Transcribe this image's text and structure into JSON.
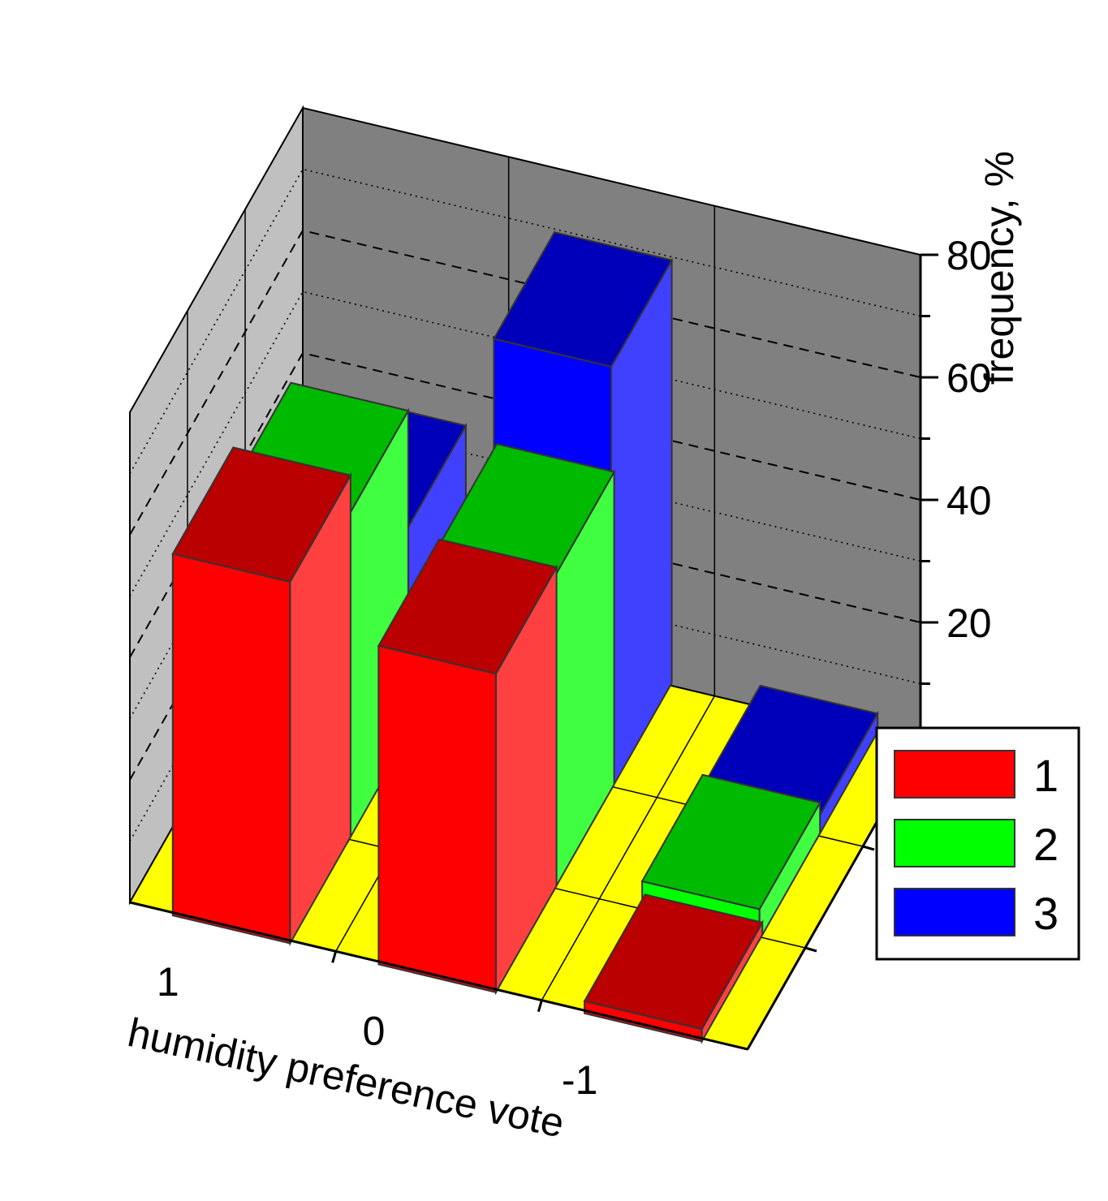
{
  "chart_data": {
    "type": "bar",
    "subtype": "3d-grouped",
    "categories": [
      "1",
      "0",
      "-1"
    ],
    "series": [
      {
        "name": "1",
        "values": [
          59,
          52,
          2
        ]
      },
      {
        "name": "2",
        "values": [
          53,
          51,
          5
        ]
      },
      {
        "name": "3",
        "values": [
          34,
          69,
          3
        ]
      }
    ],
    "xlabel": "humidity preference vote",
    "zlabel": "frequency, %",
    "zlim": [
      0,
      80
    ],
    "zticks": [
      "0",
      "20",
      "40",
      "60",
      "80"
    ],
    "grid": true,
    "legend": "right",
    "colors": {
      "series": [
        "#ff0000",
        "#00ff00",
        "#0000ff"
      ],
      "floor": "#ffff00",
      "back_wall": "#808080",
      "side_wall": "#c0c0c0"
    }
  }
}
